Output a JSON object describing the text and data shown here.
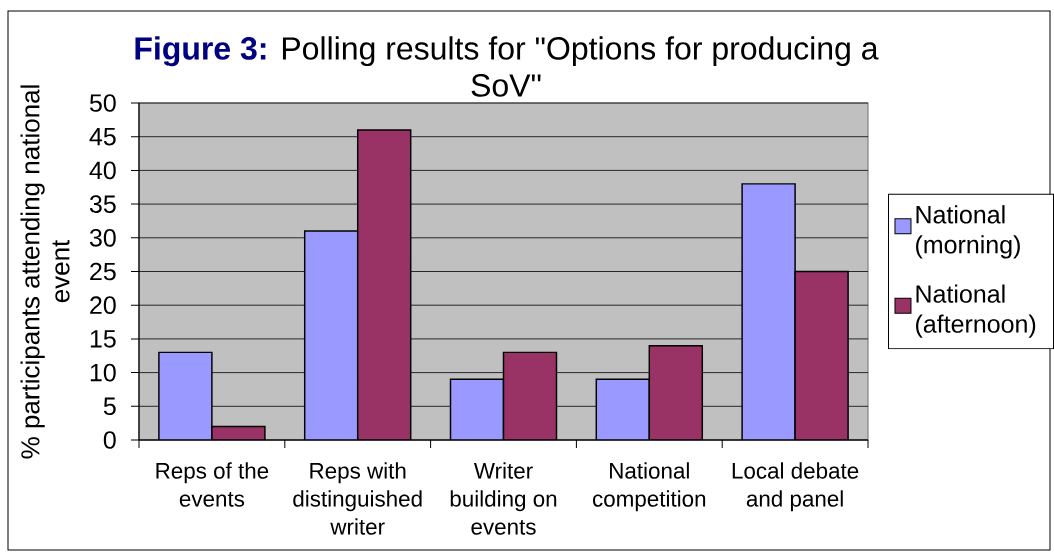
{
  "chart_data": {
    "type": "bar",
    "title": "**Figure 3:** Polling results for \"Options for producing a SoV\"",
    "ylabel": "% participants attending national event",
    "categories": [
      "Reps of the events",
      "Reps with distinguished writer",
      "Writer building on events",
      "National competition",
      "Local debate and panel"
    ],
    "series": [
      {
        "name": "National (morning)",
        "color": "#9999ff",
        "values": [
          13,
          31,
          9,
          9,
          38
        ]
      },
      {
        "name": "National (afternoon)",
        "color": "#993366",
        "values": [
          2,
          46,
          13,
          14,
          25
        ]
      }
    ],
    "ylim": [
      0,
      50
    ],
    "yticks": [
      0,
      5,
      10,
      15,
      20,
      25,
      30,
      35,
      40,
      45,
      50
    ],
    "grid": "y",
    "legend": "right"
  }
}
